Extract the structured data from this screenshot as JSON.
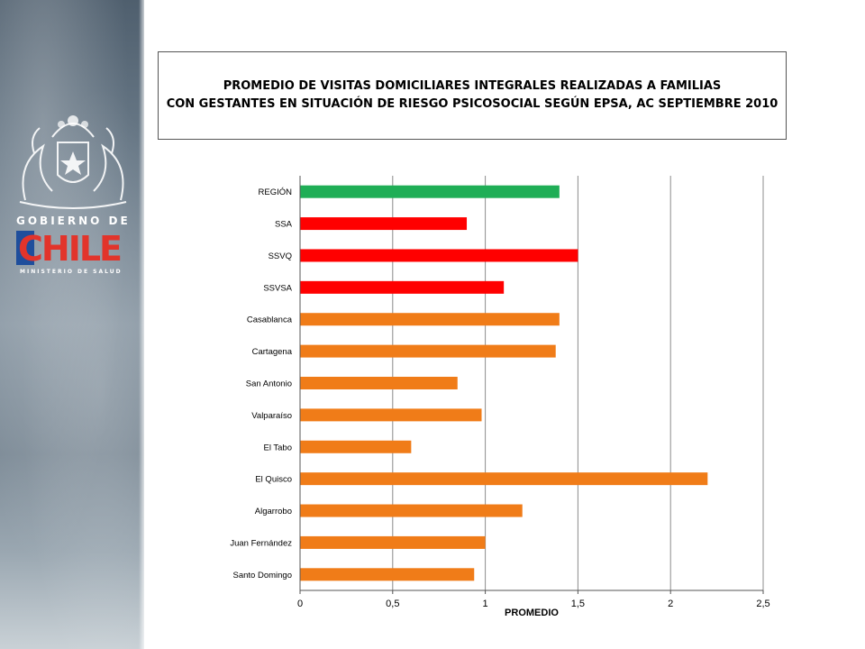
{
  "sidebar": {
    "crest_icon": "coat-of-arms-icon",
    "gov_label": "GOBIERNO DE",
    "logo_text": "CHILE",
    "ministry_label": "MINISTERIO DE SALUD",
    "logo_colors": {
      "blue": "#1f4e9c",
      "red": "#e2342b",
      "white": "#ffffff"
    }
  },
  "title": {
    "line1": "PROMEDIO DE VISITAS DOMICILIARES INTEGRALES REALIZADAS A FAMILIAS",
    "line2": "CON GESTANTES  EN SITUACIÓN DE RIESGO PSICOSOCIAL SEGÚN EPSA,  AC SEPTIEMBRE 2010"
  },
  "chart_data": {
    "type": "bar",
    "orientation": "horizontal",
    "categories": [
      "REGIÓN",
      "SSA",
      "SSVQ",
      "SSVSA",
      "Casablanca",
      "Cartagena",
      "San Antonio",
      "Valparaíso",
      "El Tabo",
      "El Quisco",
      "Algarrobo",
      "Juan Fernández",
      "Santo Domingo"
    ],
    "values": [
      1.4,
      0.9,
      1.5,
      1.1,
      1.4,
      1.38,
      0.85,
      0.98,
      0.6,
      2.2,
      1.2,
      1.0,
      0.94
    ],
    "colors": [
      "#1fae56",
      "#ff0000",
      "#ff0000",
      "#ff0000",
      "#f07c18",
      "#f07c18",
      "#f07c18",
      "#f07c18",
      "#f07c18",
      "#f07c18",
      "#f07c18",
      "#f07c18",
      "#f07c18"
    ],
    "xlabel": "PROMEDIO",
    "xlim": [
      0,
      2.5
    ],
    "xticks": [
      0,
      0.5,
      1,
      1.5,
      2,
      2.5
    ],
    "xtick_labels": [
      "0",
      "0,5",
      "1",
      "1,5",
      "2",
      "2,5"
    ],
    "grid": "vertical",
    "legend": "none"
  }
}
